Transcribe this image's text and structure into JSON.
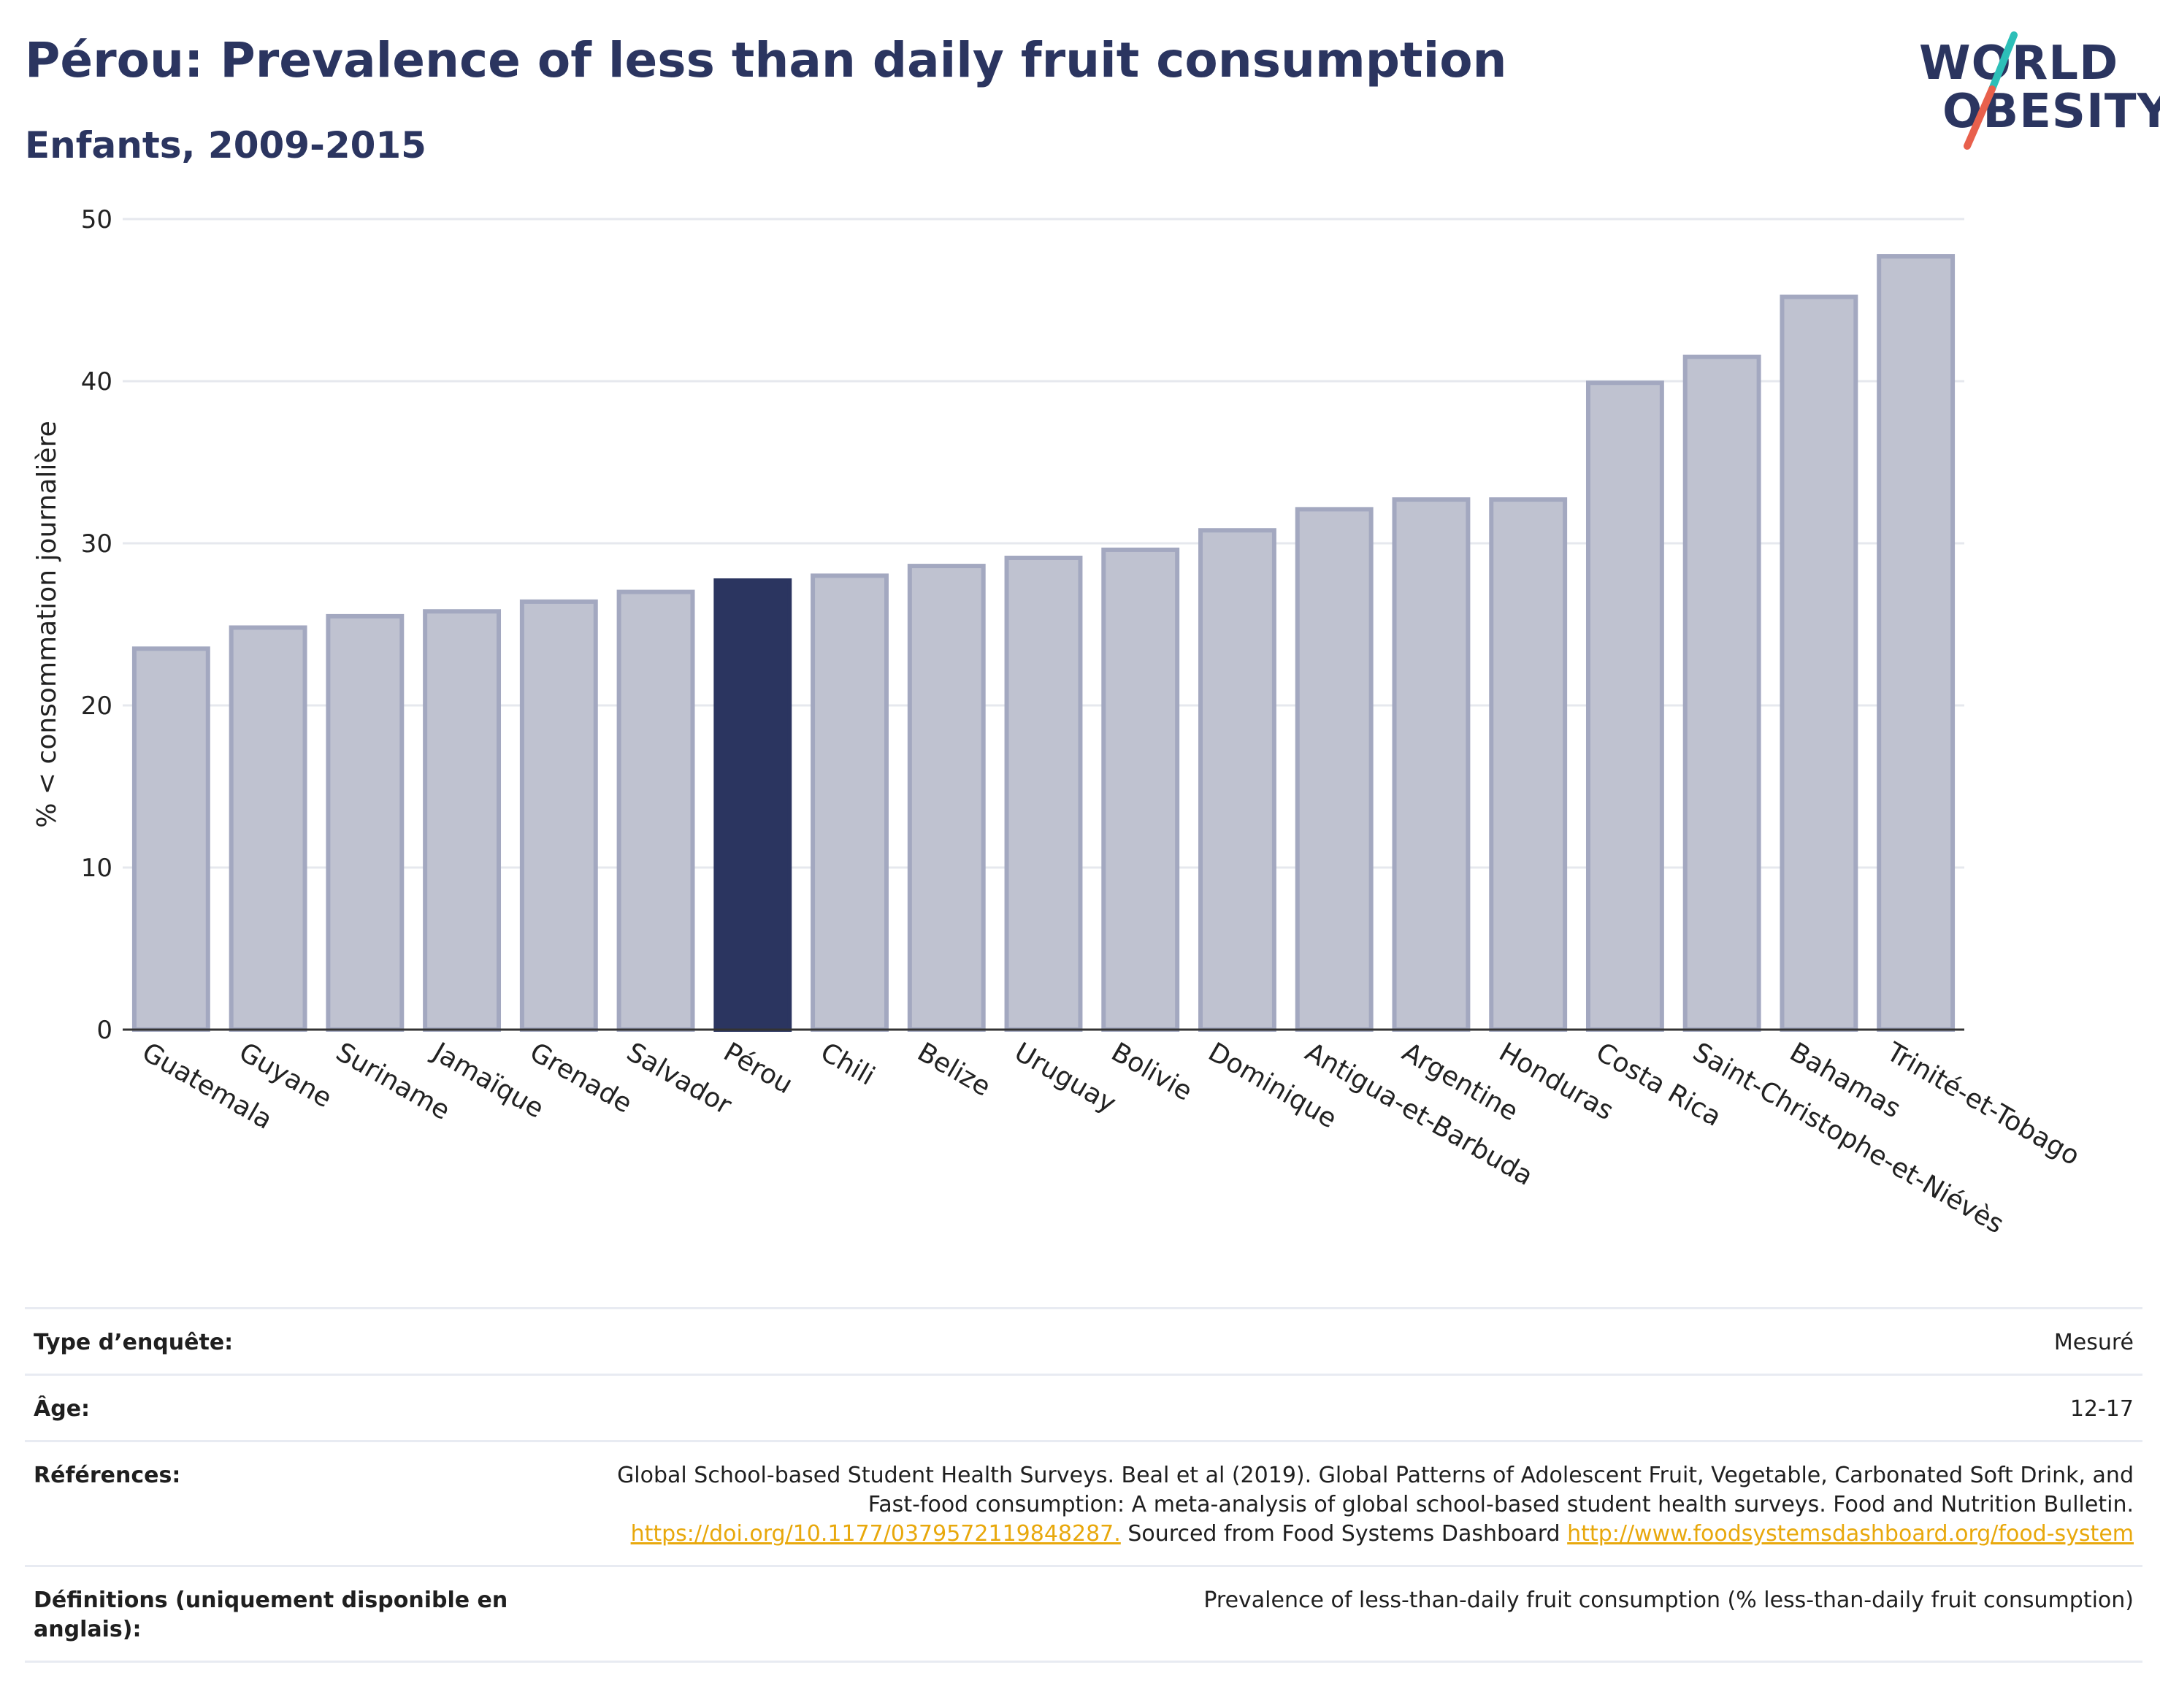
{
  "header": {
    "title": "Pérou: Prevalence of less than daily fruit consumption",
    "subtitle": "Enfants, 2009-2015"
  },
  "logo": {
    "line1": "WORLD",
    "line2": "OBESITY",
    "accent_colors": [
      "#2dbfb8",
      "#e8604c"
    ]
  },
  "chart_data": {
    "type": "bar",
    "ylabel": "% < consommation journalière",
    "xlabel": "",
    "ylim": [
      0,
      50
    ],
    "yticks": [
      0,
      10,
      20,
      30,
      40,
      50
    ],
    "grid": true,
    "highlight": "Pérou",
    "colors": {
      "bar": "#bfc2d0",
      "bar_edge": "#a3a8c0",
      "highlight": "#2b3560"
    },
    "categories": [
      "Guatemala",
      "Guyane",
      "Suriname",
      "Jamaïque",
      "Grenade",
      "Salvador",
      "Pérou",
      "Chili",
      "Belize",
      "Uruguay",
      "Bolivie",
      "Dominique",
      "Antigua-et-Barbuda",
      "Argentine",
      "Honduras",
      "Costa Rica",
      "Saint-Christophe-et-Niévès",
      "Bahamas",
      "Trinité-et-Tobago"
    ],
    "values": [
      23.5,
      24.8,
      25.5,
      25.8,
      26.4,
      27.0,
      27.7,
      28.0,
      28.6,
      29.1,
      29.6,
      30.8,
      32.1,
      32.7,
      32.7,
      39.9,
      41.5,
      45.2,
      47.7
    ]
  },
  "meta": {
    "rows": [
      {
        "key": "Type d’enquête:",
        "value": "Mesuré"
      },
      {
        "key": "Âge:",
        "value": "12-17"
      }
    ],
    "references": {
      "key": "Références:",
      "text1": "Global School-based Student Health Surveys. Beal et al (2019). Global Patterns of Adolescent Fruit, Vegetable, Carbonated Soft Drink, and Fast-food consumption: A meta-analysis of global school-based student health surveys. Food and Nutrition Bulletin.",
      "link1": "https://doi.org/10.1177/0379572119848287.",
      "text2": "Sourced from Food Systems Dashboard",
      "link2": "http://www.foodsystemsdashboard.org/food-system"
    },
    "definitions": {
      "key": "Définitions (uniquement disponible en anglais):",
      "value": "Prevalence of less-than-daily fruit consumption (% less-than-daily fruit consumption)"
    }
  }
}
